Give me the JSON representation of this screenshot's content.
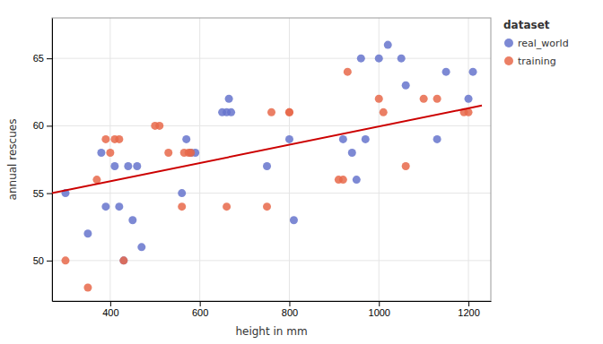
{
  "chart_data": {
    "type": "scatter",
    "xlabel": "height in mm",
    "ylabel": "annual rescues",
    "legend_title": "dataset",
    "legend": "upper right",
    "grid": true,
    "xlim": [
      270,
      1250
    ],
    "xticks": [
      400,
      600,
      800,
      1000,
      1200
    ],
    "ylim": [
      47,
      68
    ],
    "yticks": [
      50,
      55,
      60,
      65
    ],
    "series": [
      {
        "name": "real_world",
        "type": "scatter",
        "marker": "circle",
        "color": "#6674CC",
        "x": [
          300,
          350,
          380,
          390,
          410,
          420,
          430,
          440,
          450,
          460,
          470,
          560,
          570,
          580,
          590,
          650,
          660,
          665,
          670,
          750,
          800,
          810,
          920,
          940,
          950,
          960,
          970,
          1000,
          1020,
          1050,
          1060,
          1130,
          1150,
          1200,
          1210
        ],
        "values": [
          55,
          52,
          58,
          54,
          57,
          54,
          50,
          57,
          53,
          57,
          51,
          55,
          59,
          58,
          58,
          61,
          61,
          62,
          61,
          57,
          59,
          53,
          59,
          58,
          56,
          65,
          59,
          65,
          66,
          65,
          63,
          59,
          64,
          62,
          64
        ]
      },
      {
        "name": "training",
        "type": "scatter",
        "marker": "circle",
        "color": "#E8694A",
        "x": [
          300,
          350,
          370,
          390,
          400,
          410,
          420,
          430,
          500,
          510,
          530,
          560,
          565,
          575,
          580,
          660,
          750,
          760,
          800,
          800,
          910,
          920,
          930,
          1000,
          1010,
          1060,
          1100,
          1130,
          1190,
          1200
        ],
        "values": [
          50,
          48,
          56,
          59,
          58,
          59,
          59,
          50,
          60,
          60,
          58,
          54,
          58,
          58,
          58,
          54,
          54,
          61,
          61,
          61,
          56,
          56,
          64,
          62,
          61,
          57,
          62,
          62,
          61,
          61
        ]
      },
      {
        "type": "line",
        "line_style": "solid",
        "color": "#CC0000",
        "x": [
          270,
          1230
        ],
        "values": [
          55.0,
          61.5
        ]
      }
    ]
  }
}
